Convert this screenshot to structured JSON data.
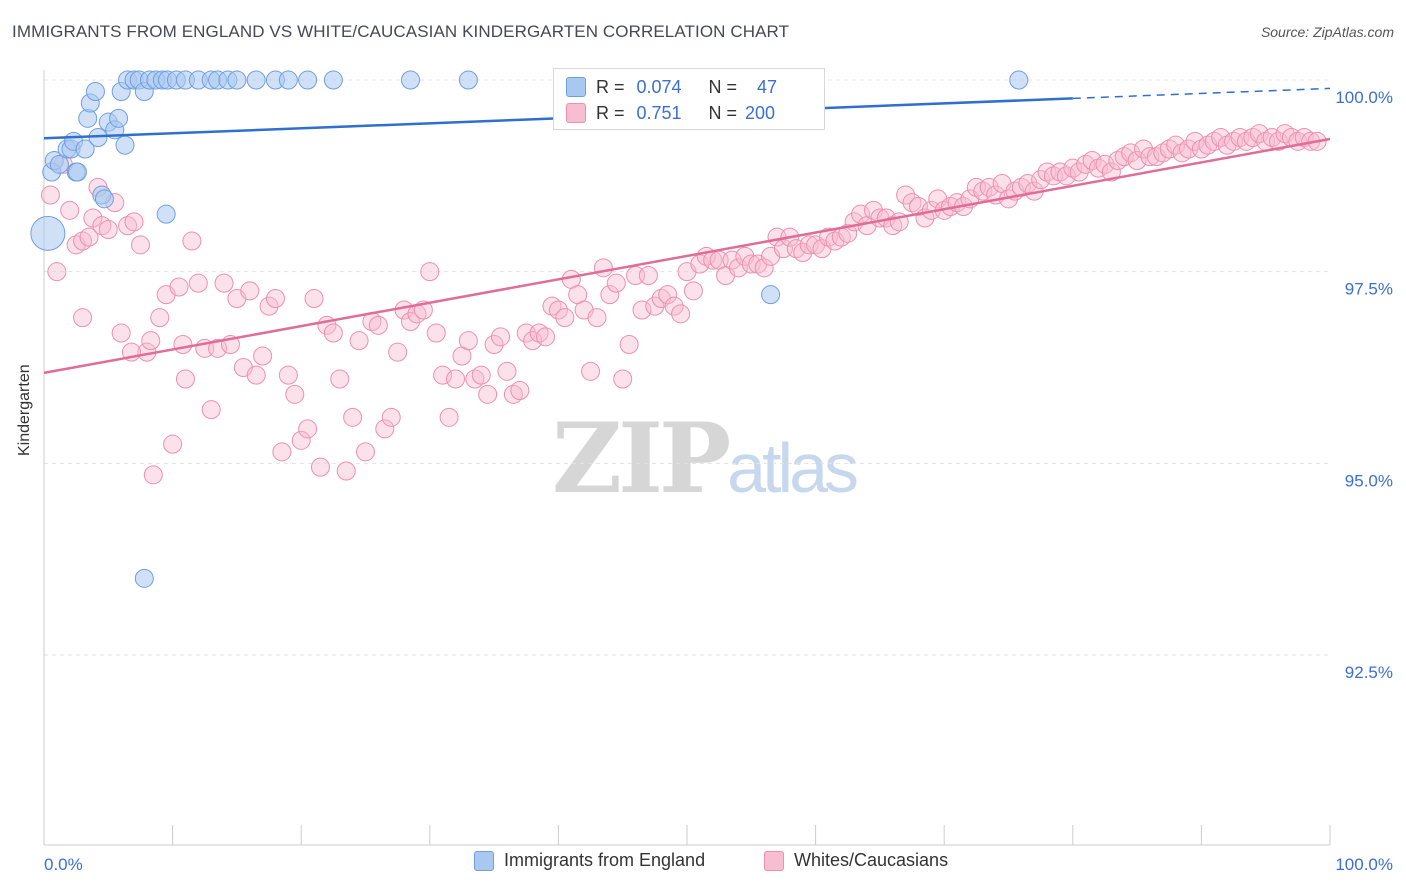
{
  "title": "IMMIGRANTS FROM ENGLAND VS WHITE/CAUCASIAN KINDERGARTEN CORRELATION CHART",
  "source": "Source: ZipAtlas.com",
  "watermark": {
    "zip": "ZIP",
    "atlas": "atlas"
  },
  "legend_stats": {
    "r_label": "R =",
    "n_label": "N =",
    "blue": {
      "r": "0.074",
      "n": "47"
    },
    "pink": {
      "r": "0.751",
      "n": "200"
    }
  },
  "colors": {
    "blue_fill": "#a9c8f0",
    "blue_stroke": "#6f9fe0",
    "blue_line": "#2f6fd0",
    "pink_fill": "#f7bdd0",
    "pink_stroke": "#ee8fb0",
    "pink_line": "#e06c98",
    "tick_label": "#3b6fd0",
    "grid": "#e3e3e3"
  },
  "chart_data": {
    "type": "scatter",
    "title": "IMMIGRANTS FROM ENGLAND VS WHITE/CAUCASIAN KINDERGARTEN CORRELATION CHART",
    "xlabel": "",
    "ylabel": "Kindergarten",
    "xlim": [
      0,
      100
    ],
    "ylim": [
      90.0,
      100.3
    ],
    "x_tick_labels": [
      "0.0%",
      "100.0%"
    ],
    "y_ticks": [
      92.5,
      95.0,
      97.5,
      100.0
    ],
    "y_tick_labels": [
      "92.5%",
      "95.0%",
      "97.5%",
      "100.0%"
    ],
    "grid": true,
    "legend_position": "bottom",
    "series": [
      {
        "name": "Immigrants from England",
        "color": "#a9c8f0",
        "trend": {
          "x": [
            0,
            80
          ],
          "y": [
            99.24,
            99.76
          ],
          "dashed_to": [
            100,
            99.89
          ]
        },
        "points": [
          [
            0.3,
            98.0
          ],
          [
            0.6,
            98.8
          ],
          [
            0.8,
            98.95
          ],
          [
            1.2,
            98.9
          ],
          [
            1.8,
            99.1
          ],
          [
            2.1,
            99.1
          ],
          [
            2.3,
            99.2
          ],
          [
            2.5,
            98.8
          ],
          [
            2.6,
            98.8
          ],
          [
            3.2,
            99.1
          ],
          [
            3.4,
            99.5
          ],
          [
            3.6,
            99.7
          ],
          [
            4.0,
            99.85
          ],
          [
            4.2,
            99.25
          ],
          [
            4.5,
            98.5
          ],
          [
            4.7,
            98.45
          ],
          [
            5.0,
            99.45
          ],
          [
            5.5,
            99.35
          ],
          [
            5.8,
            99.5
          ],
          [
            6.0,
            99.85
          ],
          [
            6.3,
            99.15
          ],
          [
            6.5,
            100.0
          ],
          [
            7.0,
            100.0
          ],
          [
            7.4,
            100.0
          ],
          [
            7.8,
            99.85
          ],
          [
            8.2,
            100.0
          ],
          [
            8.7,
            100.0
          ],
          [
            9.2,
            100.0
          ],
          [
            9.6,
            100.0
          ],
          [
            10.3,
            100.0
          ],
          [
            11.0,
            100.0
          ],
          [
            12.0,
            100.0
          ],
          [
            13.0,
            100.0
          ],
          [
            13.5,
            100.0
          ],
          [
            14.3,
            100.0
          ],
          [
            15.0,
            100.0
          ],
          [
            16.5,
            100.0
          ],
          [
            18.0,
            100.0
          ],
          [
            19.0,
            100.0
          ],
          [
            20.5,
            100.0
          ],
          [
            22.5,
            100.0
          ],
          [
            28.5,
            100.0
          ],
          [
            33.0,
            100.0
          ],
          [
            75.8,
            100.0
          ],
          [
            7.8,
            93.5
          ],
          [
            9.5,
            98.25
          ],
          [
            56.5,
            97.2
          ]
        ]
      },
      {
        "name": "Whites/Caucasians",
        "color": "#f7bdd0",
        "trend": {
          "x": [
            0,
            100
          ],
          "y": [
            96.18,
            99.23
          ]
        },
        "points": [
          [
            0.5,
            98.5
          ],
          [
            1.0,
            97.5
          ],
          [
            1.5,
            98.9
          ],
          [
            2.0,
            98.3
          ],
          [
            2.5,
            97.85
          ],
          [
            3.0,
            97.9
          ],
          [
            3.5,
            97.95
          ],
          [
            3.8,
            98.2
          ],
          [
            4.2,
            98.6
          ],
          [
            4.5,
            98.1
          ],
          [
            5.0,
            98.05
          ],
          [
            5.5,
            98.4
          ],
          [
            6.0,
            96.7
          ],
          [
            6.5,
            98.1
          ],
          [
            7.0,
            98.15
          ],
          [
            7.5,
            97.85
          ],
          [
            8.0,
            96.45
          ],
          [
            8.5,
            94.85
          ],
          [
            9.0,
            96.9
          ],
          [
            9.5,
            97.2
          ],
          [
            10.0,
            95.25
          ],
          [
            10.5,
            97.3
          ],
          [
            11.0,
            96.1
          ],
          [
            11.5,
            97.9
          ],
          [
            12.0,
            97.35
          ],
          [
            12.5,
            96.5
          ],
          [
            13.0,
            95.7
          ],
          [
            13.5,
            96.5
          ],
          [
            14.0,
            97.35
          ],
          [
            14.5,
            96.55
          ],
          [
            15.0,
            97.15
          ],
          [
            15.5,
            96.25
          ],
          [
            16.0,
            97.25
          ],
          [
            16.5,
            96.15
          ],
          [
            17.0,
            96.4
          ],
          [
            17.5,
            97.05
          ],
          [
            18.0,
            97.15
          ],
          [
            18.5,
            95.15
          ],
          [
            19.0,
            96.15
          ],
          [
            19.5,
            95.9
          ],
          [
            20.0,
            95.3
          ],
          [
            20.5,
            95.45
          ],
          [
            21.0,
            97.15
          ],
          [
            21.5,
            94.95
          ],
          [
            22.0,
            96.8
          ],
          [
            22.5,
            96.7
          ],
          [
            23.0,
            96.1
          ],
          [
            23.5,
            94.9
          ],
          [
            24.0,
            95.6
          ],
          [
            24.5,
            96.6
          ],
          [
            25.0,
            95.15
          ],
          [
            25.5,
            96.85
          ],
          [
            26.0,
            96.8
          ],
          [
            26.5,
            95.45
          ],
          [
            27.0,
            95.6
          ],
          [
            27.5,
            96.45
          ],
          [
            28.0,
            97.0
          ],
          [
            28.5,
            96.85
          ],
          [
            29.0,
            96.95
          ],
          [
            29.5,
            97.0
          ],
          [
            30.0,
            97.5
          ],
          [
            30.5,
            96.7
          ],
          [
            31.0,
            96.15
          ],
          [
            31.5,
            95.6
          ],
          [
            32.0,
            96.1
          ],
          [
            32.5,
            96.4
          ],
          [
            33.0,
            96.6
          ],
          [
            33.5,
            96.1
          ],
          [
            34.0,
            96.15
          ],
          [
            34.5,
            95.9
          ],
          [
            35.0,
            96.55
          ],
          [
            35.5,
            96.65
          ],
          [
            36.0,
            96.2
          ],
          [
            36.5,
            95.9
          ],
          [
            37.0,
            95.95
          ],
          [
            37.5,
            96.7
          ],
          [
            38.0,
            96.6
          ],
          [
            38.5,
            96.7
          ],
          [
            39.0,
            96.65
          ],
          [
            39.5,
            97.05
          ],
          [
            40.0,
            97.0
          ],
          [
            40.5,
            96.9
          ],
          [
            41.0,
            97.4
          ],
          [
            41.5,
            97.2
          ],
          [
            42.0,
            97.0
          ],
          [
            42.5,
            96.2
          ],
          [
            43.0,
            96.9
          ],
          [
            43.5,
            97.55
          ],
          [
            44.0,
            97.2
          ],
          [
            44.5,
            97.35
          ],
          [
            45.0,
            96.1
          ],
          [
            45.5,
            96.55
          ],
          [
            46.0,
            97.45
          ],
          [
            46.5,
            97.0
          ],
          [
            47.0,
            97.45
          ],
          [
            47.5,
            97.05
          ],
          [
            48.0,
            97.15
          ],
          [
            48.5,
            97.2
          ],
          [
            49.0,
            97.05
          ],
          [
            49.5,
            96.95
          ],
          [
            50.0,
            97.5
          ],
          [
            50.5,
            97.25
          ],
          [
            51.0,
            97.6
          ],
          [
            51.5,
            97.7
          ],
          [
            52.0,
            97.65
          ],
          [
            52.5,
            97.65
          ],
          [
            53.0,
            97.45
          ],
          [
            53.5,
            97.65
          ],
          [
            54.0,
            97.55
          ],
          [
            54.5,
            97.7
          ],
          [
            55.0,
            97.6
          ],
          [
            55.5,
            97.6
          ],
          [
            56.0,
            97.55
          ],
          [
            56.5,
            97.7
          ],
          [
            57.0,
            97.95
          ],
          [
            57.5,
            97.8
          ],
          [
            58.0,
            97.95
          ],
          [
            58.5,
            97.8
          ],
          [
            59.0,
            97.75
          ],
          [
            59.5,
            97.85
          ],
          [
            60.0,
            97.85
          ],
          [
            60.5,
            97.8
          ],
          [
            61.0,
            97.95
          ],
          [
            61.5,
            97.9
          ],
          [
            62.0,
            97.95
          ],
          [
            62.5,
            98.0
          ],
          [
            63.0,
            98.15
          ],
          [
            63.5,
            98.25
          ],
          [
            64.0,
            98.1
          ],
          [
            64.5,
            98.3
          ],
          [
            65.0,
            98.2
          ],
          [
            65.5,
            98.2
          ],
          [
            66.0,
            98.1
          ],
          [
            66.5,
            98.15
          ],
          [
            67.0,
            98.5
          ],
          [
            67.5,
            98.4
          ],
          [
            68.0,
            98.35
          ],
          [
            68.5,
            98.2
          ],
          [
            69.0,
            98.3
          ],
          [
            69.5,
            98.45
          ],
          [
            70.0,
            98.3
          ],
          [
            70.5,
            98.35
          ],
          [
            71.0,
            98.4
          ],
          [
            71.5,
            98.35
          ],
          [
            72.0,
            98.45
          ],
          [
            72.5,
            98.6
          ],
          [
            73.0,
            98.55
          ],
          [
            73.5,
            98.6
          ],
          [
            74.0,
            98.5
          ],
          [
            74.5,
            98.65
          ],
          [
            75.0,
            98.45
          ],
          [
            75.5,
            98.55
          ],
          [
            76.0,
            98.6
          ],
          [
            76.5,
            98.65
          ],
          [
            77.0,
            98.55
          ],
          [
            77.5,
            98.7
          ],
          [
            78.0,
            98.8
          ],
          [
            78.5,
            98.75
          ],
          [
            79.0,
            98.8
          ],
          [
            79.5,
            98.75
          ],
          [
            80.0,
            98.85
          ],
          [
            80.5,
            98.8
          ],
          [
            81.0,
            98.9
          ],
          [
            81.5,
            98.95
          ],
          [
            82.0,
            98.85
          ],
          [
            82.5,
            98.9
          ],
          [
            83.0,
            98.8
          ],
          [
            83.5,
            98.95
          ],
          [
            84.0,
            99.0
          ],
          [
            84.5,
            99.05
          ],
          [
            85.0,
            98.95
          ],
          [
            85.5,
            99.1
          ],
          [
            86.0,
            99.0
          ],
          [
            86.5,
            99.0
          ],
          [
            87.0,
            99.05
          ],
          [
            87.5,
            99.1
          ],
          [
            88.0,
            99.15
          ],
          [
            88.5,
            99.05
          ],
          [
            89.0,
            99.1
          ],
          [
            89.5,
            99.2
          ],
          [
            90.0,
            99.1
          ],
          [
            90.5,
            99.15
          ],
          [
            91.0,
            99.2
          ],
          [
            91.5,
            99.25
          ],
          [
            92.0,
            99.15
          ],
          [
            92.5,
            99.2
          ],
          [
            93.0,
            99.25
          ],
          [
            93.5,
            99.2
          ],
          [
            94.0,
            99.25
          ],
          [
            94.5,
            99.3
          ],
          [
            95.0,
            99.2
          ],
          [
            95.5,
            99.25
          ],
          [
            96.0,
            99.2
          ],
          [
            96.5,
            99.3
          ],
          [
            97.0,
            99.25
          ],
          [
            97.5,
            99.2
          ],
          [
            98.0,
            99.25
          ],
          [
            98.5,
            99.2
          ],
          [
            99.0,
            99.2
          ],
          [
            3.0,
            96.9
          ],
          [
            6.8,
            96.45
          ],
          [
            8.3,
            96.6
          ],
          [
            10.8,
            96.55
          ]
        ]
      }
    ]
  },
  "axis": {
    "y_title": "Kindergarten",
    "x_left_label": "0.0%",
    "x_right_label": "100.0%"
  },
  "legend": {
    "blue_label": "Immigrants from England",
    "pink_label": "Whites/Caucasians"
  }
}
